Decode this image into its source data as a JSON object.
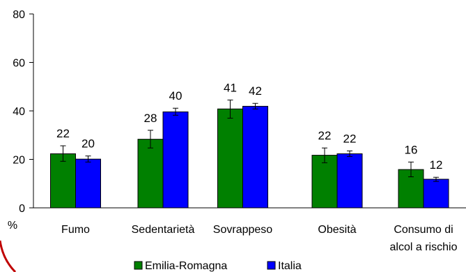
{
  "chart_data": {
    "type": "bar",
    "categories": [
      "Fumo",
      "Sedentarietà",
      "Sovrappeso",
      "Obesità",
      "Consumo di alcol a rischio"
    ],
    "category_lines": [
      [
        "Fumo"
      ],
      [
        "Sedentarietà"
      ],
      [
        "Sovrappeso"
      ],
      [
        "Obesità"
      ],
      [
        "Consumo di",
        "alcol a rischio"
      ]
    ],
    "series": [
      {
        "name": "Emilia-Romagna",
        "color": "#008000",
        "values": [
          22,
          28,
          41,
          22,
          16
        ],
        "plot_values": [
          22.3,
          28.3,
          40.8,
          21.7,
          15.8
        ],
        "error_low": [
          19.2,
          24.7,
          37.0,
          18.6,
          12.8
        ],
        "error_high": [
          25.6,
          32.0,
          44.5,
          24.7,
          18.9
        ]
      },
      {
        "name": "Italia",
        "color": "#0000ff",
        "values": [
          20,
          40,
          42,
          22,
          12
        ],
        "plot_values": [
          20.1,
          39.6,
          41.9,
          22.3,
          11.8
        ],
        "error_low": [
          18.9,
          38.2,
          40.8,
          21.2,
          10.9
        ],
        "error_high": [
          21.4,
          41.1,
          43.1,
          23.5,
          12.6
        ]
      }
    ],
    "ylim": [
      0,
      80
    ],
    "yticks": [
      0,
      20,
      40,
      60,
      80
    ],
    "ylabel": "%",
    "xlabel": "",
    "title": "",
    "grid": false,
    "legend_position": "bottom"
  }
}
